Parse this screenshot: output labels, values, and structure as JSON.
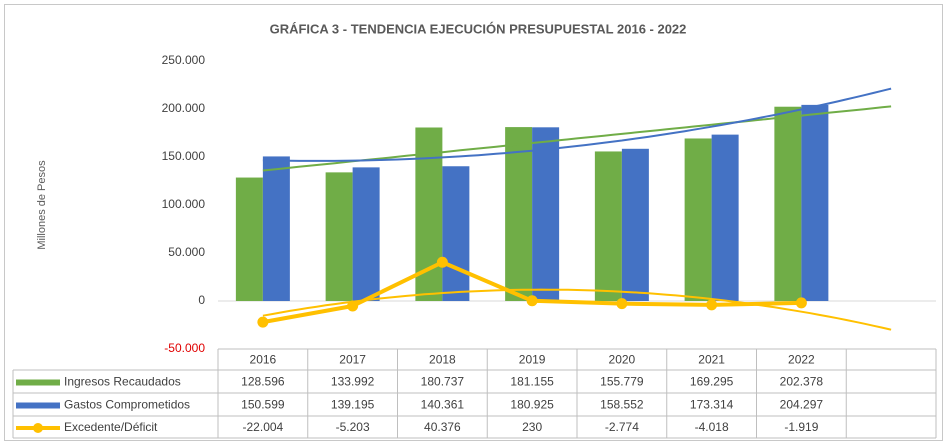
{
  "chart_data": {
    "type": "bar_line_table",
    "title": "GRÁFICA 3  - TENDENCIA EJECUCIÓN PRESUPUESTAL 2016 - 2022",
    "y_label": "Millones de Pesos",
    "categories": [
      "2016",
      "2017",
      "2018",
      "2019",
      "2020",
      "2021",
      "2022",
      null
    ],
    "series": [
      {
        "name": "Ingresos Recaudados",
        "type": "bar",
        "color": "#70ad47",
        "trendline": "linear",
        "values": [
          128596,
          133992,
          180737,
          181155,
          155779,
          169295,
          202378,
          null
        ],
        "value_labels": [
          "128.596",
          "133.992",
          "180.737",
          "181.155",
          "155.779",
          "169.295",
          "202.378",
          null
        ]
      },
      {
        "name": "Gastos Comprometidos",
        "type": "bar",
        "color": "#4472c4",
        "trendline": "poly2",
        "values": [
          150599,
          139195,
          140361,
          180925,
          158552,
          173314,
          204297,
          null
        ],
        "value_labels": [
          "150.599",
          "139.195",
          "140.361",
          "180.925",
          "158.552",
          "173.314",
          "204.297",
          null
        ]
      },
      {
        "name": "Excedente/Déficit",
        "type": "line",
        "color": "#ffc000",
        "trendline": "poly2",
        "values": [
          -22004,
          -5203,
          40376,
          230,
          -2774,
          -4018,
          -1919,
          null
        ],
        "value_labels": [
          "-22.004",
          "-5.203",
          "40.376",
          "230",
          "-2.774",
          "-4.018",
          "-1.919",
          null
        ]
      }
    ],
    "ylim": [
      -50000,
      250000
    ],
    "yticks": [
      {
        "value": -50000,
        "label": "-50.000"
      },
      {
        "value": 0,
        "label": "0"
      },
      {
        "value": 50000,
        "label": "50.000"
      },
      {
        "value": 100000,
        "label": "100.000"
      },
      {
        "value": 150000,
        "label": "150.000"
      },
      {
        "value": 200000,
        "label": "200.000"
      },
      {
        "value": 250000,
        "label": "250.000"
      }
    ],
    "negative_tick_color": "#e00000",
    "grid": false
  }
}
